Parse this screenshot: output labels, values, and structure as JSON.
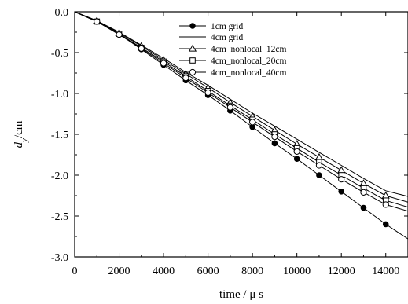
{
  "chart_data": {
    "type": "line",
    "title": "",
    "xlabel": "time / μ s",
    "ylabel_main": "d",
    "ylabel_sub": "y",
    "ylabel_unit": "/cm",
    "xlim": [
      0,
      15000
    ],
    "ylim": [
      -3.0,
      0.0
    ],
    "xticks": [
      0,
      2000,
      4000,
      6000,
      8000,
      10000,
      12000,
      14000
    ],
    "xtick_labels": [
      "0",
      "2000",
      "4000",
      "6000",
      "8000",
      "10000",
      "12000",
      "14000"
    ],
    "yticks": [
      0.0,
      -0.5,
      -1.0,
      -1.5,
      -2.0,
      -2.5,
      -3.0
    ],
    "ytick_labels": [
      "0.0",
      "-0.5",
      "-1.0",
      "-1.5",
      "-2.0",
      "-2.5",
      "-3.0"
    ],
    "grid": false,
    "legend_position": "top-right",
    "series": [
      {
        "name": "1cm grid",
        "marker": "filled-circle",
        "x": [
          0,
          1000,
          2000,
          3000,
          4000,
          5000,
          6000,
          7000,
          8000,
          9000,
          10000,
          11000,
          12000,
          13000,
          14000,
          15000
        ],
        "y": [
          0.0,
          -0.12,
          -0.27,
          -0.46,
          -0.65,
          -0.84,
          -1.02,
          -1.21,
          -1.41,
          -1.61,
          -1.8,
          -2.0,
          -2.2,
          -2.4,
          -2.6,
          -2.78
        ],
        "marker_x": [
          1000,
          2000,
          3000,
          4000,
          5000,
          6000,
          7000,
          8000,
          9000,
          10000,
          11000,
          12000,
          13000,
          14000
        ]
      },
      {
        "name": "4cm grid",
        "marker": "none",
        "x": [
          0,
          1000,
          2000,
          3000,
          4000,
          5000,
          6000,
          7000,
          8000,
          9000,
          10000,
          11000,
          12000,
          13000,
          14000,
          15000
        ],
        "y": [
          0.0,
          -0.11,
          -0.25,
          -0.41,
          -0.57,
          -0.74,
          -0.9,
          -1.07,
          -1.24,
          -1.4,
          -1.56,
          -1.72,
          -1.88,
          -2.04,
          -2.19,
          -2.26
        ]
      },
      {
        "name": "4cm_nonlocal_12cm",
        "marker": "open-triangle",
        "x": [
          0,
          1000,
          2000,
          3000,
          4000,
          5000,
          6000,
          7000,
          8000,
          9000,
          10000,
          11000,
          12000,
          13000,
          14000,
          15000
        ],
        "y": [
          0.0,
          -0.11,
          -0.26,
          -0.42,
          -0.59,
          -0.76,
          -0.93,
          -1.11,
          -1.28,
          -1.45,
          -1.62,
          -1.78,
          -1.94,
          -2.1,
          -2.25,
          -2.33
        ],
        "marker_x": [
          1000,
          2000,
          3000,
          4000,
          5000,
          6000,
          7000,
          8000,
          9000,
          10000,
          11000,
          12000,
          13000,
          14000
        ]
      },
      {
        "name": "4cm_nonlocal_20cm",
        "marker": "open-square",
        "x": [
          0,
          1000,
          2000,
          3000,
          4000,
          5000,
          6000,
          7000,
          8000,
          9000,
          10000,
          11000,
          12000,
          13000,
          14000,
          15000
        ],
        "y": [
          0.0,
          -0.12,
          -0.27,
          -0.44,
          -0.61,
          -0.79,
          -0.97,
          -1.15,
          -1.32,
          -1.5,
          -1.67,
          -1.84,
          -2.0,
          -2.16,
          -2.31,
          -2.39
        ],
        "marker_x": [
          1000,
          2000,
          3000,
          4000,
          5000,
          6000,
          7000,
          8000,
          9000,
          10000,
          11000,
          12000,
          13000,
          14000
        ]
      },
      {
        "name": "4cm_nonlocal_40cm",
        "marker": "open-circle",
        "x": [
          0,
          1000,
          2000,
          3000,
          4000,
          5000,
          6000,
          7000,
          8000,
          9000,
          10000,
          11000,
          12000,
          13000,
          14000,
          15000
        ],
        "y": [
          0.0,
          -0.12,
          -0.28,
          -0.45,
          -0.63,
          -0.81,
          -0.99,
          -1.17,
          -1.35,
          -1.53,
          -1.71,
          -1.88,
          -2.05,
          -2.21,
          -2.36,
          -2.44
        ],
        "marker_x": [
          1000,
          2000,
          3000,
          4000,
          5000,
          6000,
          7000,
          8000,
          9000,
          10000,
          11000,
          12000,
          13000,
          14000
        ]
      }
    ]
  }
}
